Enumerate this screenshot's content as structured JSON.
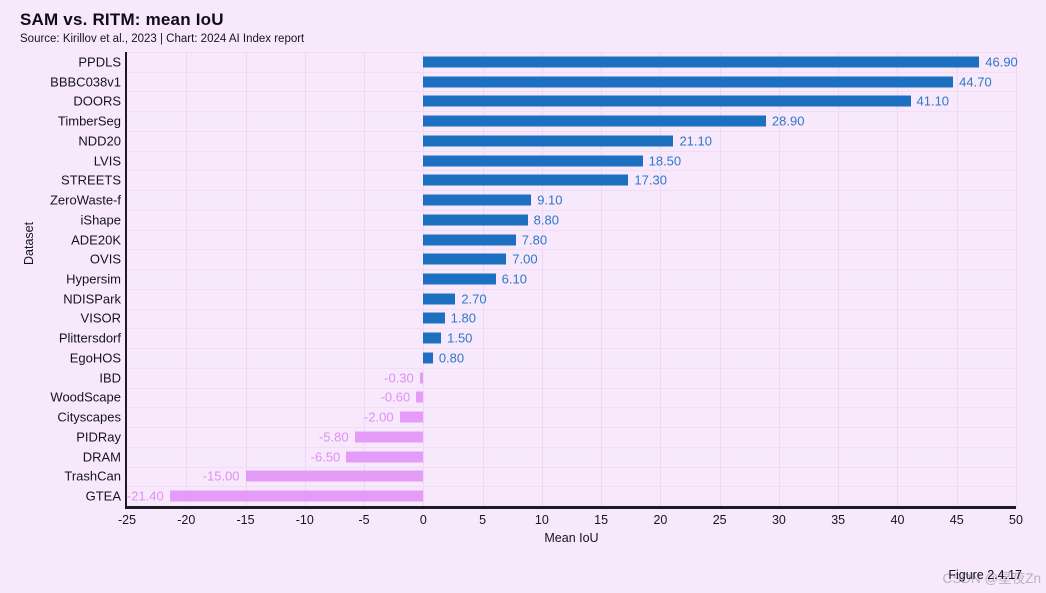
{
  "header": {
    "title": "SAM vs. RITM: mean IoU",
    "subtitle": "Source: Kirillov et al., 2023 | Chart: 2024 AI Index report"
  },
  "footer": {
    "figure_caption": "Figure 2.4.17",
    "watermark": "CSDN @星夜Zn"
  },
  "colors": {
    "background": "#f8e8fc",
    "positive_bar": "#1d6fc0",
    "positive_value_label": "#2e78c8",
    "negative_bar": "#e49cf8",
    "negative_value_label": "#de90f4",
    "axis_spine": "#1c1b22",
    "gridline": "#eed7f6",
    "text": "#15141d"
  },
  "chart_data": {
    "type": "bar",
    "orientation": "horizontal",
    "title": "SAM vs. RITM: mean IoU",
    "xlabel": "Mean IoU",
    "ylabel": "Dataset",
    "xlim": [
      -25,
      50
    ],
    "xticks": [
      -25,
      -20,
      -15,
      -10,
      -5,
      0,
      5,
      10,
      15,
      20,
      25,
      30,
      35,
      40,
      45,
      50
    ],
    "grid": true,
    "legend": false,
    "categories": [
      "PPDLS",
      "BBBC038v1",
      "DOORS",
      "TimberSeg",
      "NDD20",
      "LVIS",
      "STREETS",
      "ZeroWaste-f",
      "iShape",
      "ADE20K",
      "OVIS",
      "Hypersim",
      "NDISPark",
      "VISOR",
      "Plittersdorf",
      "EgoHOS",
      "IBD",
      "WoodScape",
      "Cityscapes",
      "PIDRay",
      "DRAM",
      "TrashCan",
      "GTEA"
    ],
    "values": [
      46.9,
      44.7,
      41.1,
      28.9,
      21.1,
      18.5,
      17.3,
      9.1,
      8.8,
      7.8,
      7.0,
      6.1,
      2.7,
      1.8,
      1.5,
      0.8,
      -0.3,
      -0.6,
      -2.0,
      -5.8,
      -6.5,
      -15.0,
      -21.4
    ],
    "value_labels": [
      "46.90",
      "44.70",
      "41.10",
      "28.90",
      "21.10",
      "18.50",
      "17.30",
      "9.10",
      "8.80",
      "7.80",
      "7.00",
      "6.10",
      "2.70",
      "1.80",
      "1.50",
      "0.80",
      "-0.30",
      "-0.60",
      "-2.00",
      "-5.80",
      "-6.50",
      "-15.00",
      "-21.40"
    ]
  }
}
